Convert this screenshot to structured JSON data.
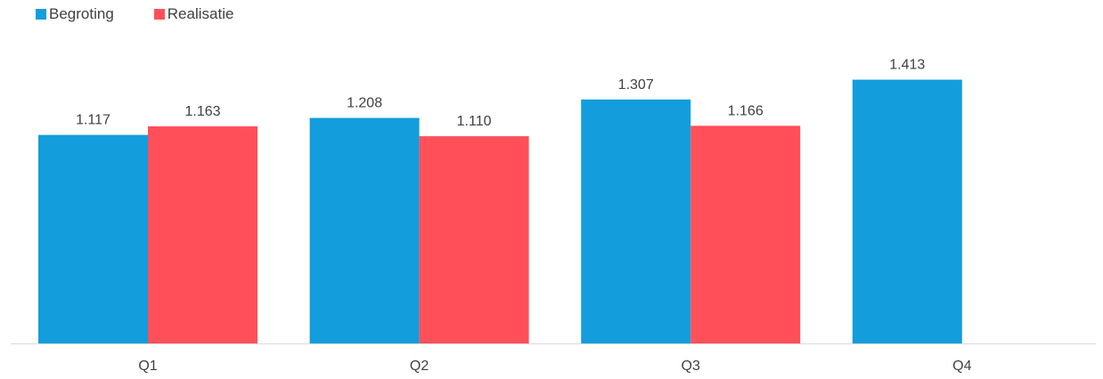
{
  "colors": {
    "begroting": "#139DDC",
    "realisatie": "#FF505A",
    "axis": "#D9D9D9",
    "text": "#404040"
  },
  "chart_data": {
    "type": "bar",
    "categories": [
      "Q1",
      "Q2",
      "Q3",
      "Q4"
    ],
    "series": [
      {
        "name": "Begroting",
        "values": [
          1117,
          1208,
          1307,
          1413
        ],
        "labels": [
          "1.117",
          "1.208",
          "1.307",
          "1.413"
        ]
      },
      {
        "name": "Realisatie",
        "values": [
          1163,
          1110,
          1166,
          null
        ],
        "labels": [
          "1.163",
          "1.110",
          "1.166",
          null
        ]
      }
    ],
    "legend_position": "top-left",
    "ylim": [
      0,
      1600
    ],
    "grid": false
  }
}
